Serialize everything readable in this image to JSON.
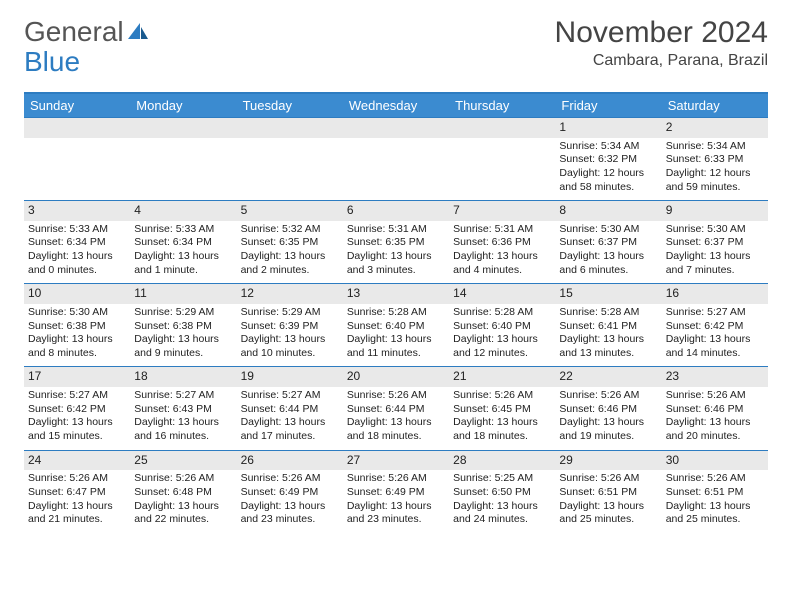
{
  "logo": {
    "text1": "General",
    "text2": "Blue"
  },
  "title": {
    "month": "November 2024",
    "location": "Cambara, Parana, Brazil"
  },
  "colors": {
    "header_bg": "#3b8bd0",
    "header_text": "#ffffff",
    "border": "#2d7cc1",
    "daynum_bg": "#e9e9e9",
    "text": "#222222"
  },
  "day_names": [
    "Sunday",
    "Monday",
    "Tuesday",
    "Wednesday",
    "Thursday",
    "Friday",
    "Saturday"
  ],
  "weeks": [
    [
      {
        "num": "",
        "empty": true
      },
      {
        "num": "",
        "empty": true
      },
      {
        "num": "",
        "empty": true
      },
      {
        "num": "",
        "empty": true
      },
      {
        "num": "",
        "empty": true
      },
      {
        "num": "1",
        "sunrise": "Sunrise: 5:34 AM",
        "sunset": "Sunset: 6:32 PM",
        "daylight": "Daylight: 12 hours and 58 minutes."
      },
      {
        "num": "2",
        "sunrise": "Sunrise: 5:34 AM",
        "sunset": "Sunset: 6:33 PM",
        "daylight": "Daylight: 12 hours and 59 minutes."
      }
    ],
    [
      {
        "num": "3",
        "sunrise": "Sunrise: 5:33 AM",
        "sunset": "Sunset: 6:34 PM",
        "daylight": "Daylight: 13 hours and 0 minutes."
      },
      {
        "num": "4",
        "sunrise": "Sunrise: 5:33 AM",
        "sunset": "Sunset: 6:34 PM",
        "daylight": "Daylight: 13 hours and 1 minute."
      },
      {
        "num": "5",
        "sunrise": "Sunrise: 5:32 AM",
        "sunset": "Sunset: 6:35 PM",
        "daylight": "Daylight: 13 hours and 2 minutes."
      },
      {
        "num": "6",
        "sunrise": "Sunrise: 5:31 AM",
        "sunset": "Sunset: 6:35 PM",
        "daylight": "Daylight: 13 hours and 3 minutes."
      },
      {
        "num": "7",
        "sunrise": "Sunrise: 5:31 AM",
        "sunset": "Sunset: 6:36 PM",
        "daylight": "Daylight: 13 hours and 4 minutes."
      },
      {
        "num": "8",
        "sunrise": "Sunrise: 5:30 AM",
        "sunset": "Sunset: 6:37 PM",
        "daylight": "Daylight: 13 hours and 6 minutes."
      },
      {
        "num": "9",
        "sunrise": "Sunrise: 5:30 AM",
        "sunset": "Sunset: 6:37 PM",
        "daylight": "Daylight: 13 hours and 7 minutes."
      }
    ],
    [
      {
        "num": "10",
        "sunrise": "Sunrise: 5:30 AM",
        "sunset": "Sunset: 6:38 PM",
        "daylight": "Daylight: 13 hours and 8 minutes."
      },
      {
        "num": "11",
        "sunrise": "Sunrise: 5:29 AM",
        "sunset": "Sunset: 6:38 PM",
        "daylight": "Daylight: 13 hours and 9 minutes."
      },
      {
        "num": "12",
        "sunrise": "Sunrise: 5:29 AM",
        "sunset": "Sunset: 6:39 PM",
        "daylight": "Daylight: 13 hours and 10 minutes."
      },
      {
        "num": "13",
        "sunrise": "Sunrise: 5:28 AM",
        "sunset": "Sunset: 6:40 PM",
        "daylight": "Daylight: 13 hours and 11 minutes."
      },
      {
        "num": "14",
        "sunrise": "Sunrise: 5:28 AM",
        "sunset": "Sunset: 6:40 PM",
        "daylight": "Daylight: 13 hours and 12 minutes."
      },
      {
        "num": "15",
        "sunrise": "Sunrise: 5:28 AM",
        "sunset": "Sunset: 6:41 PM",
        "daylight": "Daylight: 13 hours and 13 minutes."
      },
      {
        "num": "16",
        "sunrise": "Sunrise: 5:27 AM",
        "sunset": "Sunset: 6:42 PM",
        "daylight": "Daylight: 13 hours and 14 minutes."
      }
    ],
    [
      {
        "num": "17",
        "sunrise": "Sunrise: 5:27 AM",
        "sunset": "Sunset: 6:42 PM",
        "daylight": "Daylight: 13 hours and 15 minutes."
      },
      {
        "num": "18",
        "sunrise": "Sunrise: 5:27 AM",
        "sunset": "Sunset: 6:43 PM",
        "daylight": "Daylight: 13 hours and 16 minutes."
      },
      {
        "num": "19",
        "sunrise": "Sunrise: 5:27 AM",
        "sunset": "Sunset: 6:44 PM",
        "daylight": "Daylight: 13 hours and 17 minutes."
      },
      {
        "num": "20",
        "sunrise": "Sunrise: 5:26 AM",
        "sunset": "Sunset: 6:44 PM",
        "daylight": "Daylight: 13 hours and 18 minutes."
      },
      {
        "num": "21",
        "sunrise": "Sunrise: 5:26 AM",
        "sunset": "Sunset: 6:45 PM",
        "daylight": "Daylight: 13 hours and 18 minutes."
      },
      {
        "num": "22",
        "sunrise": "Sunrise: 5:26 AM",
        "sunset": "Sunset: 6:46 PM",
        "daylight": "Daylight: 13 hours and 19 minutes."
      },
      {
        "num": "23",
        "sunrise": "Sunrise: 5:26 AM",
        "sunset": "Sunset: 6:46 PM",
        "daylight": "Daylight: 13 hours and 20 minutes."
      }
    ],
    [
      {
        "num": "24",
        "sunrise": "Sunrise: 5:26 AM",
        "sunset": "Sunset: 6:47 PM",
        "daylight": "Daylight: 13 hours and 21 minutes."
      },
      {
        "num": "25",
        "sunrise": "Sunrise: 5:26 AM",
        "sunset": "Sunset: 6:48 PM",
        "daylight": "Daylight: 13 hours and 22 minutes."
      },
      {
        "num": "26",
        "sunrise": "Sunrise: 5:26 AM",
        "sunset": "Sunset: 6:49 PM",
        "daylight": "Daylight: 13 hours and 23 minutes."
      },
      {
        "num": "27",
        "sunrise": "Sunrise: 5:26 AM",
        "sunset": "Sunset: 6:49 PM",
        "daylight": "Daylight: 13 hours and 23 minutes."
      },
      {
        "num": "28",
        "sunrise": "Sunrise: 5:25 AM",
        "sunset": "Sunset: 6:50 PM",
        "daylight": "Daylight: 13 hours and 24 minutes."
      },
      {
        "num": "29",
        "sunrise": "Sunrise: 5:26 AM",
        "sunset": "Sunset: 6:51 PM",
        "daylight": "Daylight: 13 hours and 25 minutes."
      },
      {
        "num": "30",
        "sunrise": "Sunrise: 5:26 AM",
        "sunset": "Sunset: 6:51 PM",
        "daylight": "Daylight: 13 hours and 25 minutes."
      }
    ]
  ]
}
